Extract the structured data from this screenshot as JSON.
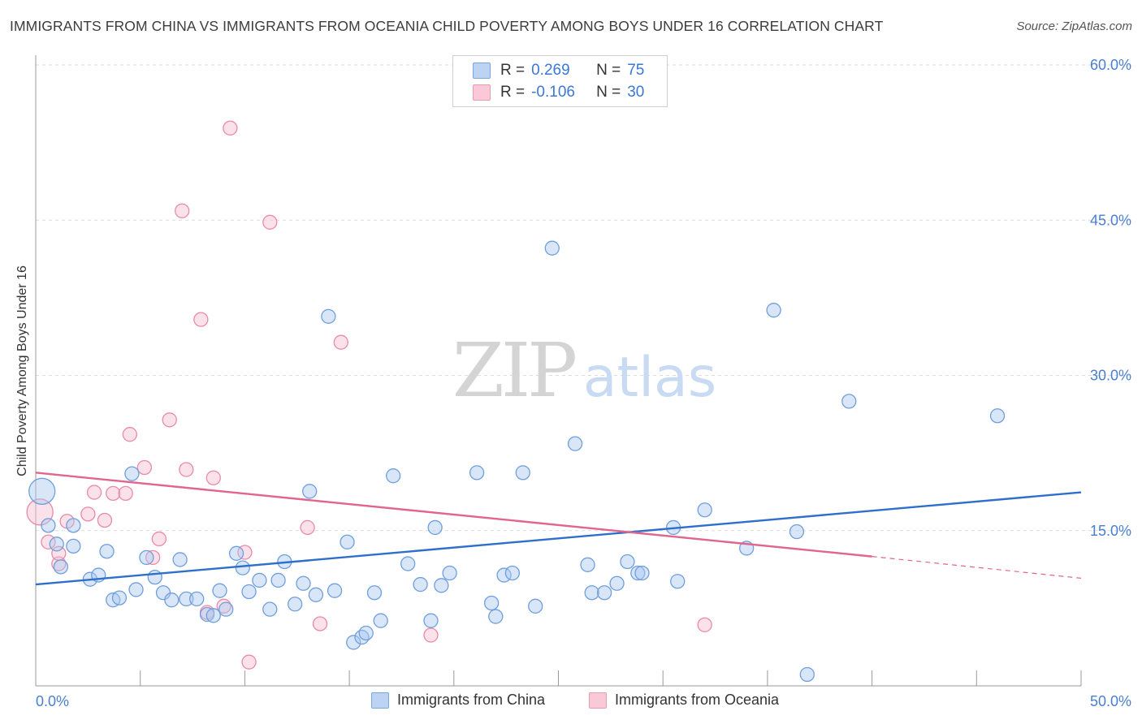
{
  "header": {
    "title": "IMMIGRANTS FROM CHINA VS IMMIGRANTS FROM OCEANIA CHILD POVERTY AMONG BOYS UNDER 16 CORRELATION CHART",
    "source": "Source: ZipAtlas.com"
  },
  "watermark": {
    "zip": "ZIP",
    "atlas": "atlas"
  },
  "legend": {
    "china": {
      "r_label": "R =",
      "r_value": "0.269",
      "n_label": "N =",
      "n_value": "75"
    },
    "oceania": {
      "r_label": "R =",
      "r_value": "-0.106",
      "n_label": "N =",
      "n_value": "30"
    }
  },
  "bottom_legend": {
    "china": "Immigrants from China",
    "oceania": "Immigrants from Oceania"
  },
  "colors": {
    "china_fill": "#a9c8f0",
    "china_stroke": "#6f9fdc",
    "china_line": "#2f6fcc",
    "oceania_fill": "#f6bfd0",
    "oceania_stroke": "#e98aa8",
    "oceania_line": "#e0658f",
    "tick_label": "#4a7fd0",
    "grid": "#dcdcdc"
  },
  "chart_data": {
    "type": "scatter",
    "title": "IMMIGRANTS FROM CHINA VS IMMIGRANTS FROM OCEANIA CHILD POVERTY AMONG BOYS UNDER 16 CORRELATION CHART",
    "xlabel": "",
    "ylabel": "Child Poverty Among Boys Under 16",
    "xlim": [
      0,
      50
    ],
    "ylim": [
      0,
      60
    ],
    "x_tick_labels": [
      "0.0%",
      "50.0%"
    ],
    "y_ticks": [
      15,
      30,
      45,
      60
    ],
    "y_tick_labels": [
      "15.0%",
      "30.0%",
      "45.0%",
      "60.0%"
    ],
    "grid": true,
    "legend_position": "top-center",
    "series": [
      {
        "name": "Immigrants from China",
        "points": [
          [
            0.3,
            18.8
          ],
          [
            0.6,
            15.5
          ],
          [
            1.0,
            13.7
          ],
          [
            1.2,
            11.5
          ],
          [
            1.8,
            13.5
          ],
          [
            1.8,
            15.5
          ],
          [
            2.6,
            10.3
          ],
          [
            3.0,
            10.7
          ],
          [
            3.4,
            13.0
          ],
          [
            3.7,
            8.3
          ],
          [
            4.0,
            8.5
          ],
          [
            4.6,
            20.5
          ],
          [
            4.8,
            9.3
          ],
          [
            5.3,
            12.4
          ],
          [
            5.7,
            10.5
          ],
          [
            6.1,
            9.0
          ],
          [
            6.5,
            8.3
          ],
          [
            6.9,
            12.2
          ],
          [
            7.2,
            8.4
          ],
          [
            7.7,
            8.4
          ],
          [
            8.2,
            6.9
          ],
          [
            8.5,
            6.8
          ],
          [
            8.8,
            9.2
          ],
          [
            9.1,
            7.4
          ],
          [
            9.6,
            12.8
          ],
          [
            9.9,
            11.4
          ],
          [
            10.2,
            9.1
          ],
          [
            10.7,
            10.2
          ],
          [
            11.2,
            7.4
          ],
          [
            11.6,
            10.2
          ],
          [
            11.9,
            12.0
          ],
          [
            12.4,
            7.9
          ],
          [
            12.8,
            9.9
          ],
          [
            13.1,
            18.8
          ],
          [
            13.4,
            8.8
          ],
          [
            14.0,
            35.7
          ],
          [
            14.3,
            9.2
          ],
          [
            14.9,
            13.9
          ],
          [
            15.2,
            4.2
          ],
          [
            15.6,
            4.7
          ],
          [
            15.8,
            5.1
          ],
          [
            16.2,
            9.0
          ],
          [
            16.5,
            6.3
          ],
          [
            17.1,
            20.3
          ],
          [
            17.8,
            11.8
          ],
          [
            18.4,
            9.8
          ],
          [
            18.9,
            6.3
          ],
          [
            19.1,
            15.3
          ],
          [
            19.4,
            9.7
          ],
          [
            19.8,
            10.9
          ],
          [
            21.1,
            20.6
          ],
          [
            21.8,
            8.0
          ],
          [
            22.0,
            6.7
          ],
          [
            22.4,
            10.7
          ],
          [
            22.8,
            10.9
          ],
          [
            23.3,
            20.6
          ],
          [
            23.9,
            7.7
          ],
          [
            24.7,
            42.3
          ],
          [
            25.8,
            23.4
          ],
          [
            26.4,
            11.7
          ],
          [
            26.6,
            9.0
          ],
          [
            27.2,
            9.0
          ],
          [
            27.8,
            9.9
          ],
          [
            28.3,
            12.0
          ],
          [
            28.8,
            10.9
          ],
          [
            29.0,
            10.9
          ],
          [
            30.5,
            15.3
          ],
          [
            30.7,
            10.1
          ],
          [
            32.0,
            17.0
          ],
          [
            34.0,
            13.3
          ],
          [
            35.3,
            36.3
          ],
          [
            36.4,
            14.9
          ],
          [
            36.9,
            1.1
          ],
          [
            38.9,
            27.5
          ],
          [
            46.0,
            26.1
          ]
        ],
        "trend": {
          "x": [
            0,
            50
          ],
          "y": [
            9.8,
            18.7
          ]
        }
      },
      {
        "name": "Immigrants from Oceania",
        "points": [
          [
            0.2,
            16.8
          ],
          [
            0.6,
            13.9
          ],
          [
            1.1,
            11.8
          ],
          [
            1.1,
            12.8
          ],
          [
            1.5,
            15.9
          ],
          [
            2.5,
            16.6
          ],
          [
            2.8,
            18.7
          ],
          [
            3.3,
            16.0
          ],
          [
            3.7,
            18.6
          ],
          [
            4.3,
            18.6
          ],
          [
            4.5,
            24.3
          ],
          [
            5.2,
            21.1
          ],
          [
            5.6,
            12.4
          ],
          [
            5.9,
            14.2
          ],
          [
            6.4,
            25.7
          ],
          [
            7.0,
            45.9
          ],
          [
            7.2,
            20.9
          ],
          [
            7.9,
            35.4
          ],
          [
            8.2,
            7.1
          ],
          [
            8.5,
            20.1
          ],
          [
            9.0,
            7.7
          ],
          [
            9.3,
            53.9
          ],
          [
            10.0,
            12.9
          ],
          [
            10.2,
            2.3
          ],
          [
            11.2,
            44.8
          ],
          [
            13.0,
            15.3
          ],
          [
            13.6,
            6.0
          ],
          [
            14.6,
            33.2
          ],
          [
            18.9,
            4.9
          ],
          [
            32.0,
            5.9
          ]
        ],
        "trend": {
          "x": [
            0,
            40
          ],
          "y": [
            20.6,
            12.5
          ]
        },
        "trend_dashed": {
          "x": [
            40,
            50
          ],
          "y": [
            12.5,
            10.4
          ]
        }
      }
    ]
  }
}
